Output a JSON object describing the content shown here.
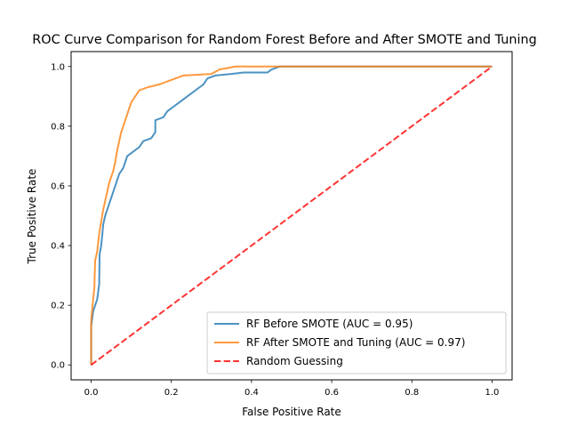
{
  "chart_data": {
    "type": "line",
    "title": "ROC Curve Comparison for Random Forest Before and After SMOTE and Tuning",
    "xlabel": "False Positive Rate",
    "ylabel": "True Positive Rate",
    "xlim": [
      -0.05,
      1.05
    ],
    "ylim": [
      -0.05,
      1.05
    ],
    "xticks": [
      0.0,
      0.2,
      0.4,
      0.6,
      0.8,
      1.0
    ],
    "yticks": [
      0.0,
      0.2,
      0.4,
      0.6,
      0.8,
      1.0
    ],
    "tick_labels": [
      "0.0",
      "0.2",
      "0.4",
      "0.6",
      "0.8",
      "1.0"
    ],
    "grid": false,
    "legend_position": "lower-right",
    "series": [
      {
        "name": "RF Before SMOTE (AUC = 0.95)",
        "color": "#1f77b4",
        "dash": "solid",
        "points": [
          [
            0.0,
            0.0
          ],
          [
            0.0,
            0.13
          ],
          [
            0.005,
            0.18
          ],
          [
            0.01,
            0.2
          ],
          [
            0.015,
            0.22
          ],
          [
            0.02,
            0.27
          ],
          [
            0.021,
            0.37
          ],
          [
            0.025,
            0.4
          ],
          [
            0.028,
            0.44
          ],
          [
            0.03,
            0.47
          ],
          [
            0.035,
            0.5
          ],
          [
            0.04,
            0.52
          ],
          [
            0.045,
            0.54
          ],
          [
            0.05,
            0.56
          ],
          [
            0.055,
            0.58
          ],
          [
            0.06,
            0.6
          ],
          [
            0.065,
            0.62
          ],
          [
            0.07,
            0.64
          ],
          [
            0.08,
            0.66
          ],
          [
            0.085,
            0.68
          ],
          [
            0.09,
            0.7
          ],
          [
            0.1,
            0.71
          ],
          [
            0.11,
            0.72
          ],
          [
            0.12,
            0.73
          ],
          [
            0.13,
            0.75
          ],
          [
            0.15,
            0.76
          ],
          [
            0.16,
            0.78
          ],
          [
            0.16,
            0.82
          ],
          [
            0.18,
            0.83
          ],
          [
            0.19,
            0.85
          ],
          [
            0.2,
            0.86
          ],
          [
            0.21,
            0.87
          ],
          [
            0.22,
            0.88
          ],
          [
            0.23,
            0.89
          ],
          [
            0.24,
            0.9
          ],
          [
            0.25,
            0.91
          ],
          [
            0.26,
            0.92
          ],
          [
            0.27,
            0.93
          ],
          [
            0.28,
            0.94
          ],
          [
            0.29,
            0.96
          ],
          [
            0.31,
            0.97
          ],
          [
            0.35,
            0.975
          ],
          [
            0.38,
            0.98
          ],
          [
            0.44,
            0.98
          ],
          [
            0.45,
            0.99
          ],
          [
            0.47,
            1.0
          ],
          [
            1.0,
            1.0
          ]
        ]
      },
      {
        "name": "RF After SMOTE and Tuning (AUC = 0.97)",
        "color": "#ff7f0e",
        "dash": "solid",
        "points": [
          [
            0.0,
            0.0
          ],
          [
            0.0,
            0.15
          ],
          [
            0.005,
            0.22
          ],
          [
            0.008,
            0.26
          ],
          [
            0.01,
            0.35
          ],
          [
            0.015,
            0.38
          ],
          [
            0.02,
            0.44
          ],
          [
            0.025,
            0.48
          ],
          [
            0.03,
            0.52
          ],
          [
            0.035,
            0.55
          ],
          [
            0.04,
            0.58
          ],
          [
            0.045,
            0.61
          ],
          [
            0.05,
            0.63
          ],
          [
            0.055,
            0.65
          ],
          [
            0.06,
            0.68
          ],
          [
            0.065,
            0.72
          ],
          [
            0.07,
            0.75
          ],
          [
            0.075,
            0.78
          ],
          [
            0.08,
            0.8
          ],
          [
            0.085,
            0.82
          ],
          [
            0.09,
            0.84
          ],
          [
            0.095,
            0.86
          ],
          [
            0.1,
            0.88
          ],
          [
            0.11,
            0.9
          ],
          [
            0.12,
            0.92
          ],
          [
            0.14,
            0.93
          ],
          [
            0.17,
            0.94
          ],
          [
            0.19,
            0.95
          ],
          [
            0.21,
            0.96
          ],
          [
            0.23,
            0.97
          ],
          [
            0.3,
            0.975
          ],
          [
            0.32,
            0.99
          ],
          [
            0.36,
            1.0
          ],
          [
            1.0,
            1.0
          ]
        ]
      },
      {
        "name": "Random Guessing",
        "color": "#ff0000",
        "dash": "dashed",
        "points": [
          [
            0.0,
            0.0
          ],
          [
            1.0,
            1.0
          ]
        ]
      }
    ]
  }
}
